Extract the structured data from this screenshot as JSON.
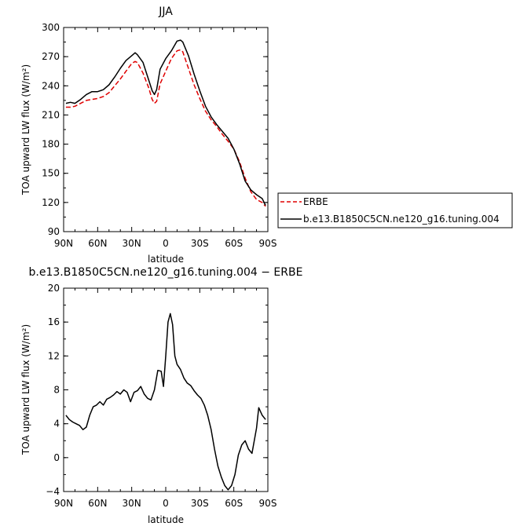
{
  "chart_data": [
    {
      "type": "line",
      "title": "JJA",
      "xlabel": "latitude",
      "ylabel": "TOA upward LW flux (W/m²)",
      "xlim": [
        90,
        -90
      ],
      "ylim": [
        90,
        300
      ],
      "x_ticks": [
        90,
        60,
        30,
        0,
        -30,
        -60,
        -90
      ],
      "x_tick_labels": [
        "90N",
        "60N",
        "30N",
        "0",
        "30S",
        "60S",
        "90S"
      ],
      "y_ticks": [
        90,
        120,
        150,
        180,
        210,
        240,
        270,
        300
      ],
      "y_tick_labels": [
        "90",
        "120",
        "150",
        "180",
        "210",
        "240",
        "270",
        "300"
      ],
      "legend": {
        "placement": "right",
        "entries": [
          "ERBE",
          "b.e13.B1850C5CN.ne120_g16.tuning.004"
        ]
      },
      "series": [
        {
          "name": "ERBE",
          "color": "#e00000",
          "dash": true,
          "x": [
            88,
            84,
            80,
            75,
            70,
            65,
            60,
            55,
            50,
            45,
            40,
            35,
            30,
            27,
            25,
            20,
            15,
            12,
            10,
            8,
            5,
            0,
            -5,
            -10,
            -13,
            -15,
            -20,
            -25,
            -30,
            -35,
            -40,
            -45,
            -50,
            -55,
            -60,
            -65,
            -70,
            -75,
            -80,
            -85,
            -88
          ],
          "y": [
            218,
            218,
            219,
            222,
            225,
            226,
            227,
            229,
            233,
            240,
            247,
            255,
            263,
            265,
            264,
            253,
            238,
            226,
            222,
            224,
            242,
            255,
            268,
            276,
            277,
            275,
            258,
            241,
            227,
            214,
            205,
            198,
            190,
            183,
            175,
            162,
            145,
            131,
            123,
            120,
            116
          ]
        },
        {
          "name": "b.e13.B1850C5CN.ne120_g16.tuning.004",
          "color": "#000000",
          "dash": false,
          "x": [
            88,
            84,
            80,
            75,
            70,
            65,
            60,
            55,
            50,
            45,
            40,
            35,
            30,
            27,
            25,
            20,
            15,
            12,
            10,
            8,
            5,
            0,
            -5,
            -10,
            -13,
            -15,
            -20,
            -25,
            -30,
            -35,
            -40,
            -45,
            -50,
            -55,
            -60,
            -65,
            -70,
            -75,
            -80,
            -85,
            -88
          ],
          "y": [
            222,
            223,
            222,
            226,
            231,
            234,
            234,
            236,
            241,
            249,
            258,
            266,
            271,
            274,
            272,
            264,
            246,
            235,
            231,
            236,
            257,
            268,
            276,
            286,
            287,
            285,
            271,
            252,
            235,
            219,
            208,
            200,
            193,
            186,
            175,
            160,
            142,
            133,
            128,
            124,
            117
          ]
        }
      ]
    },
    {
      "type": "line",
      "title": "b.e13.B1850C5CN.ne120_g16.tuning.004 − ERBE",
      "xlabel": "latitude",
      "ylabel": "TOA upward LW flux (W/m²)",
      "xlim": [
        90,
        -90
      ],
      "ylim": [
        -4,
        20
      ],
      "x_ticks": [
        90,
        60,
        30,
        0,
        -30,
        -60,
        -90
      ],
      "x_tick_labels": [
        "90N",
        "60N",
        "30N",
        "0",
        "30S",
        "60S",
        "90S"
      ],
      "y_ticks": [
        -4,
        0,
        4,
        8,
        12,
        16,
        20
      ],
      "y_tick_labels": [
        "−4",
        "0",
        "4",
        "8",
        "12",
        "16",
        "20"
      ],
      "series": [
        {
          "color": "#000000",
          "dash": false,
          "x": [
            88,
            85,
            82,
            79,
            76,
            73,
            70,
            67,
            64,
            61,
            58,
            55,
            52,
            49,
            46,
            43,
            40,
            37,
            34,
            31,
            28,
            25,
            22,
            19,
            16,
            13,
            10,
            7,
            4,
            2,
            0,
            -2,
            -4,
            -6,
            -8,
            -10,
            -13,
            -16,
            -19,
            -22,
            -25,
            -28,
            -31,
            -34,
            -37,
            -40,
            -43,
            -46,
            -49,
            -52,
            -55,
            -58,
            -61,
            -64,
            -67,
            -70,
            -73,
            -76,
            -78,
            -80,
            -82,
            -85,
            -88
          ],
          "y": [
            5,
            4.5,
            4.2,
            4,
            3.8,
            3.3,
            3.6,
            5,
            6,
            6.2,
            6.6,
            6.2,
            6.9,
            7.1,
            7.4,
            7.8,
            7.5,
            8,
            7.7,
            6.6,
            7.7,
            7.9,
            8.4,
            7.5,
            7,
            6.8,
            8,
            10.3,
            10.2,
            8.4,
            12,
            16,
            17,
            15.7,
            12,
            11,
            10.4,
            9.4,
            8.8,
            8.5,
            7.9,
            7.4,
            7,
            6.2,
            5,
            3.3,
            1,
            -1,
            -2.3,
            -3.3,
            -3.8,
            -3.3,
            -2,
            0.3,
            1.5,
            2,
            1,
            0.5,
            2,
            3.5,
            5.9,
            5,
            4.5
          ]
        }
      ]
    }
  ]
}
